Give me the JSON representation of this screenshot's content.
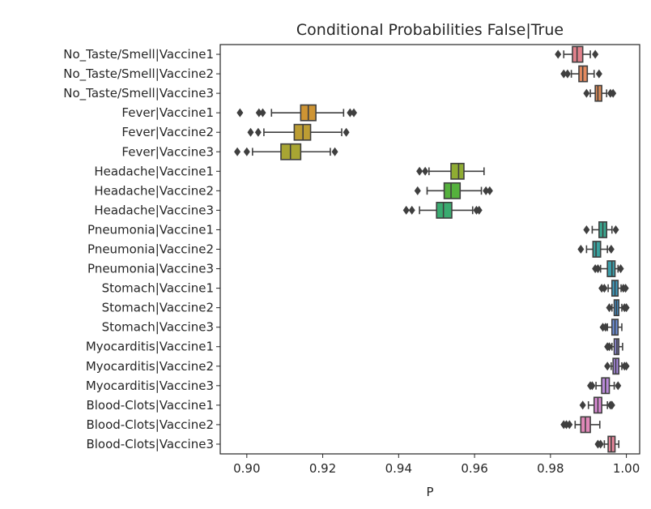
{
  "chart_data": {
    "type": "boxplot",
    "title": "Conditional Probabilities False|True",
    "xlabel": "P",
    "ylabel": "",
    "xlim": [
      0.893,
      1.0035
    ],
    "xticks": [
      "0.90",
      "0.92",
      "0.94",
      "0.96",
      "0.98",
      "1.00"
    ],
    "orientation": "horizontal",
    "grid": false,
    "categories": [
      "No_Taste/Smell|Vaccine1",
      "No_Taste/Smell|Vaccine2",
      "No_Taste/Smell|Vaccine3",
      "Fever|Vaccine1",
      "Fever|Vaccine2",
      "Fever|Vaccine3",
      "Headache|Vaccine1",
      "Headache|Vaccine2",
      "Headache|Vaccine3",
      "Pneumonia|Vaccine1",
      "Pneumonia|Vaccine2",
      "Pneumonia|Vaccine3",
      "Stomach|Vaccine1",
      "Stomach|Vaccine2",
      "Stomach|Vaccine3",
      "Myocarditis|Vaccine1",
      "Myocarditis|Vaccine2",
      "Myocarditis|Vaccine3",
      "Blood-Clots|Vaccine1",
      "Blood-Clots|Vaccine2",
      "Blood-Clots|Vaccine3"
    ],
    "boxes": [
      {
        "whisker_low": 0.9835,
        "q1": 0.9858,
        "median": 0.987,
        "q3": 0.9885,
        "whisker_high": 0.9905,
        "outliers": [
          0.982,
          0.9918
        ],
        "color": "#e1818b"
      },
      {
        "whisker_low": 0.9855,
        "q1": 0.9875,
        "median": 0.9885,
        "q3": 0.9897,
        "whisker_high": 0.9915,
        "outliers": [
          0.9835,
          0.9845,
          0.9928
        ],
        "color": "#e48a5f"
      },
      {
        "whisker_low": 0.9905,
        "q1": 0.9918,
        "median": 0.9925,
        "q3": 0.9935,
        "whisker_high": 0.9948,
        "outliers": [
          0.9895,
          0.9958,
          0.9965
        ],
        "color": "#d98a57"
      },
      {
        "whisker_low": 0.9065,
        "q1": 0.9142,
        "median": 0.9162,
        "q3": 0.9182,
        "whisker_high": 0.9255,
        "outliers": [
          0.8982,
          0.9032,
          0.9042,
          0.9272,
          0.9282
        ],
        "color": "#ce9433"
      },
      {
        "whisker_low": 0.9045,
        "q1": 0.9125,
        "median": 0.9148,
        "q3": 0.9168,
        "whisker_high": 0.925,
        "outliers": [
          0.901,
          0.903,
          0.9262
        ],
        "color": "#bc9d33"
      },
      {
        "whisker_low": 0.9015,
        "q1": 0.909,
        "median": 0.9115,
        "q3": 0.9142,
        "whisker_high": 0.922,
        "outliers": [
          0.8975,
          0.9,
          0.9232
        ],
        "color": "#a8a533"
      },
      {
        "whisker_low": 0.948,
        "q1": 0.9538,
        "median": 0.9558,
        "q3": 0.9572,
        "whisker_high": 0.9625,
        "outliers": [
          0.9455,
          0.947
        ],
        "color": "#8fac33"
      },
      {
        "whisker_low": 0.9475,
        "q1": 0.952,
        "median": 0.9538,
        "q3": 0.9562,
        "whisker_high": 0.9618,
        "outliers": [
          0.945,
          0.963,
          0.964
        ],
        "color": "#55b13d"
      },
      {
        "whisker_low": 0.9455,
        "q1": 0.95,
        "median": 0.9518,
        "q3": 0.954,
        "whisker_high": 0.9595,
        "outliers": [
          0.942,
          0.9435,
          0.9605,
          0.9612
        ],
        "color": "#3aab70"
      },
      {
        "whisker_low": 0.991,
        "q1": 0.9928,
        "median": 0.9938,
        "q3": 0.9948,
        "whisker_high": 0.9962,
        "outliers": [
          0.9895,
          0.9972
        ],
        "color": "#3ba68f"
      },
      {
        "whisker_low": 0.9895,
        "q1": 0.9912,
        "median": 0.992,
        "q3": 0.9932,
        "whisker_high": 0.995,
        "outliers": [
          0.988,
          0.996
        ],
        "color": "#3aa29f"
      },
      {
        "whisker_low": 0.9932,
        "q1": 0.995,
        "median": 0.9962,
        "q3": 0.997,
        "whisker_high": 0.9978,
        "outliers": [
          0.9918,
          0.9925,
          0.9985
        ],
        "color": "#3c9fab"
      },
      {
        "whisker_low": 0.9952,
        "q1": 0.9962,
        "median": 0.997,
        "q3": 0.9978,
        "whisker_high": 0.9986,
        "outliers": [
          0.9935,
          0.9942,
          0.9992,
          0.9998
        ],
        "color": "#3f9bbd"
      },
      {
        "whisker_low": 0.9962,
        "q1": 0.9968,
        "median": 0.9974,
        "q3": 0.998,
        "whisker_high": 0.9988,
        "outliers": [
          0.9955,
          0.9995,
          1.0
        ],
        "color": "#4394cf"
      },
      {
        "whisker_low": 0.995,
        "q1": 0.9962,
        "median": 0.997,
        "q3": 0.9978,
        "whisker_high": 0.9988,
        "outliers": [
          0.9938,
          0.9945
        ],
        "color": "#6b8ed6"
      },
      {
        "whisker_low": 0.9962,
        "q1": 0.9968,
        "median": 0.9975,
        "q3": 0.998,
        "whisker_high": 0.999,
        "outliers": [
          0.995,
          0.9955
        ],
        "color": "#8e8ad8"
      },
      {
        "whisker_low": 0.996,
        "q1": 0.9965,
        "median": 0.9972,
        "q3": 0.998,
        "whisker_high": 0.9988,
        "outliers": [
          0.995,
          0.9995,
          1.0
        ],
        "color": "#a486da"
      },
      {
        "whisker_low": 0.992,
        "q1": 0.9935,
        "median": 0.9945,
        "q3": 0.9955,
        "whisker_high": 0.9968,
        "outliers": [
          0.9905,
          0.991,
          0.9978
        ],
        "color": "#b98ad8"
      },
      {
        "whisker_low": 0.99,
        "q1": 0.9915,
        "median": 0.9925,
        "q3": 0.9935,
        "whisker_high": 0.995,
        "outliers": [
          0.9885,
          0.9958,
          0.9962
        ],
        "color": "#d88ad2"
      },
      {
        "whisker_low": 0.9865,
        "q1": 0.988,
        "median": 0.9892,
        "q3": 0.9905,
        "whisker_high": 0.993,
        "outliers": [
          0.9835,
          0.9842,
          0.985
        ],
        "color": "#e088b8"
      },
      {
        "whisker_low": 0.9942,
        "q1": 0.9952,
        "median": 0.996,
        "q3": 0.997,
        "whisker_high": 0.998,
        "outliers": [
          0.9925,
          0.9932
        ],
        "color": "#e5869a"
      }
    ]
  }
}
